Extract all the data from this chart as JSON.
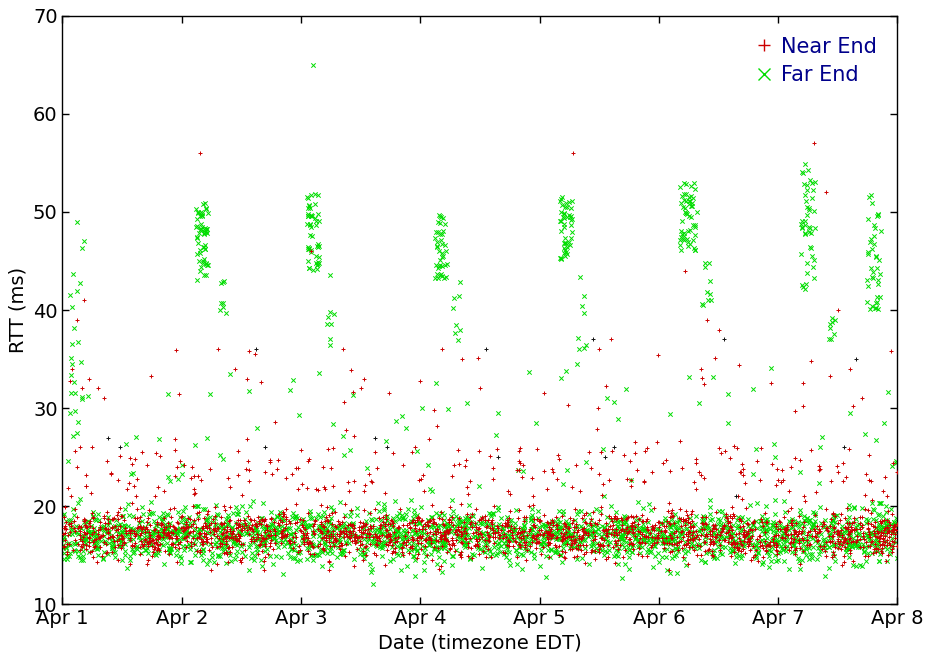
{
  "title": "",
  "xlabel": "Date (timezone EDT)",
  "ylabel": "RTT (ms)",
  "xlim": [
    0,
    7
  ],
  "ylim": [
    10,
    70
  ],
  "yticks": [
    10,
    20,
    30,
    40,
    50,
    60,
    70
  ],
  "xtick_labels": [
    "Apr 1",
    "Apr 2",
    "Apr 3",
    "Apr 4",
    "Apr 5",
    "Apr 6",
    "Apr 7",
    "Apr 8"
  ],
  "xtick_positions": [
    0,
    1,
    2,
    3,
    4,
    5,
    6,
    7
  ],
  "near_end_color": "#cc0000",
  "far_end_color": "#00dd00",
  "black_color": "#111111",
  "bg_color": "#ffffff",
  "near_end_label": "Near End",
  "far_end_label": "Far End",
  "legend_text_color": "#00008b",
  "seed": 12345
}
